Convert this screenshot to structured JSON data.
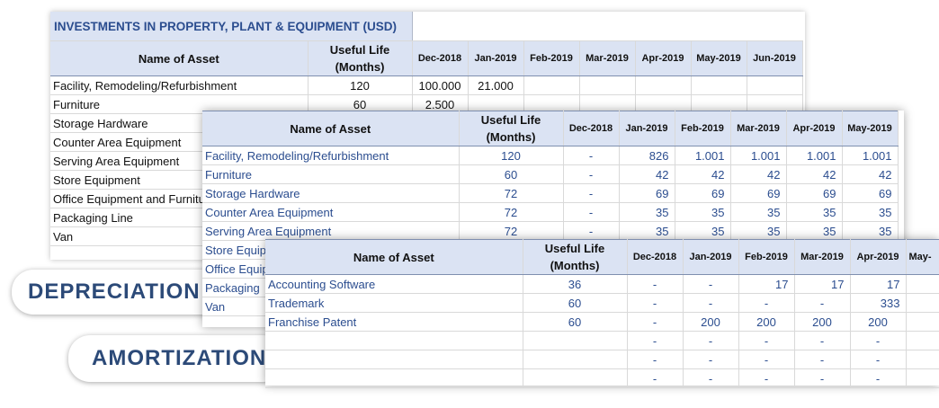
{
  "pills": {
    "depreciation": "DEPRECIATION",
    "amortization": "AMORTIZATION"
  },
  "investments": {
    "title": "INVESTMENTS IN PROPERTY, PLANT & EQUIPMENT (USD)",
    "col_name": "Name of Asset",
    "col_life_1": "Useful Life",
    "col_life_2": "(Months)",
    "months": [
      "Dec-2018",
      "Jan-2019",
      "Feb-2019",
      "Mar-2019",
      "Apr-2019",
      "May-2019",
      "Jun-2019"
    ],
    "rows": [
      {
        "name": "Facility, Remodeling/Refurbishment",
        "life": "120",
        "dec": "100.000",
        "jan": "21.000"
      },
      {
        "name": "Furniture",
        "life": "60",
        "dec": "2.500",
        "jan": ""
      },
      {
        "name": "Storage Hardware",
        "life": "",
        "dec": "",
        "jan": ""
      },
      {
        "name": "Counter Area Equipment",
        "life": "",
        "dec": "",
        "jan": ""
      },
      {
        "name": "Serving Area Equipment",
        "life": "",
        "dec": "",
        "jan": ""
      },
      {
        "name": "Store Equipment",
        "life": "",
        "dec": "",
        "jan": ""
      },
      {
        "name": "Office Equipment and Furniture",
        "life": "",
        "dec": "",
        "jan": ""
      },
      {
        "name": "Packaging Line",
        "life": "",
        "dec": "",
        "jan": ""
      },
      {
        "name": "Van",
        "life": "",
        "dec": "",
        "jan": ""
      }
    ]
  },
  "depreciation": {
    "col_name": "Name of Asset",
    "col_life_1": "Useful Life",
    "col_life_2": "(Months)",
    "months": [
      "Dec-2018",
      "Jan-2019",
      "Feb-2019",
      "Mar-2019",
      "Apr-2019",
      "May-2019"
    ],
    "rows": [
      {
        "name": "Facility, Remodeling/Refurbishment",
        "life": "120",
        "vals": [
          "-",
          "826",
          "1.001",
          "1.001",
          "1.001",
          "1.001"
        ]
      },
      {
        "name": "Furniture",
        "life": "60",
        "vals": [
          "-",
          "42",
          "42",
          "42",
          "42",
          "42"
        ]
      },
      {
        "name": "Storage Hardware",
        "life": "72",
        "vals": [
          "-",
          "69",
          "69",
          "69",
          "69",
          "69"
        ]
      },
      {
        "name": "Counter Area Equipment",
        "life": "72",
        "vals": [
          "-",
          "35",
          "35",
          "35",
          "35",
          "35"
        ]
      },
      {
        "name": "Serving Area Equipment",
        "life": "72",
        "vals": [
          "-",
          "35",
          "35",
          "35",
          "35",
          "35"
        ]
      },
      {
        "name": "Store Equipment",
        "life": "",
        "vals": [
          "",
          "",
          "",
          "",
          "",
          ""
        ]
      },
      {
        "name": "Office Equipment",
        "life": "",
        "vals": [
          "",
          "",
          "",
          "",
          "",
          ""
        ]
      },
      {
        "name": "Packaging",
        "life": "",
        "vals": [
          "",
          "",
          "",
          "",
          "",
          ""
        ]
      },
      {
        "name": "Van",
        "life": "",
        "vals": [
          "",
          "",
          "",
          "",
          "",
          ""
        ]
      }
    ]
  },
  "amortization": {
    "col_name": "Name of Asset",
    "col_life_1": "Useful Life",
    "col_life_2": "(Months)",
    "months": [
      "Dec-2018",
      "Jan-2019",
      "Feb-2019",
      "Mar-2019",
      "Apr-2019",
      "May-"
    ],
    "rows": [
      {
        "name": "Accounting Software",
        "life": "36",
        "vals": [
          "-",
          "-",
          "17",
          "17",
          "17",
          ""
        ]
      },
      {
        "name": "Trademark",
        "life": "60",
        "vals": [
          "-",
          "-",
          "-",
          "-",
          "333",
          ""
        ]
      },
      {
        "name": "Franchise Patent",
        "life": "60",
        "vals": [
          "-",
          "200",
          "200",
          "200",
          "200",
          ""
        ]
      },
      {
        "name": "",
        "life": "",
        "vals": [
          "-",
          "-",
          "-",
          "-",
          "-",
          ""
        ]
      },
      {
        "name": "",
        "life": "",
        "vals": [
          "-",
          "-",
          "-",
          "-",
          "-",
          ""
        ]
      },
      {
        "name": "",
        "life": "",
        "vals": [
          "-",
          "-",
          "-",
          "-",
          "-",
          ""
        ]
      }
    ]
  }
}
